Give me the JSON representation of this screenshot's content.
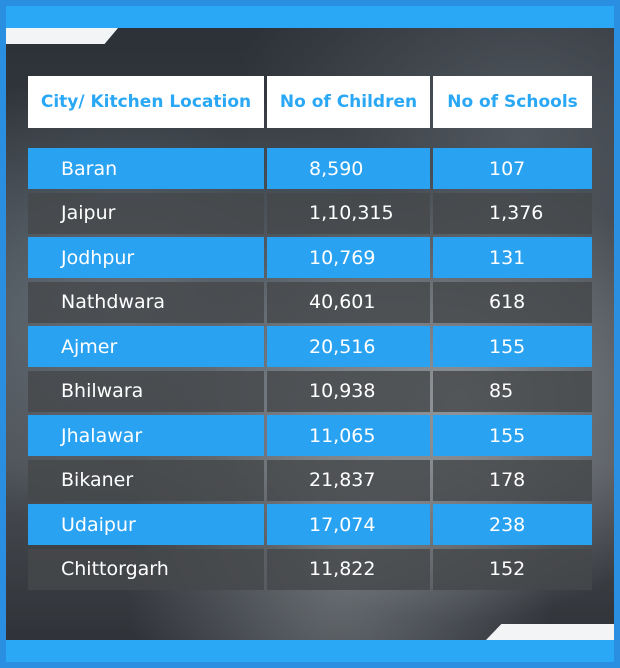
{
  "table": {
    "headers": [
      "City/ Kitchen Location",
      "No of Children",
      "No of Schools"
    ],
    "rows": [
      {
        "city": "Baran",
        "children": "8,590",
        "schools": "107"
      },
      {
        "city": "Jaipur",
        "children": "1,10,315",
        "schools": "1,376"
      },
      {
        "city": "Jodhpur",
        "children": "10,769",
        "schools": "131"
      },
      {
        "city": "Nathdwara",
        "children": "40,601",
        "schools": "618"
      },
      {
        "city": "Ajmer",
        "children": "20,516",
        "schools": "155"
      },
      {
        "city": "Bhilwara",
        "children": "10,938",
        "schools": "85"
      },
      {
        "city": "Jhalawar",
        "children": "11,065",
        "schools": "155"
      },
      {
        "city": "Bikaner",
        "children": "21,837",
        "schools": "178"
      },
      {
        "city": "Udaipur",
        "children": "17,074",
        "schools": "238"
      },
      {
        "city": "Chittorgarh",
        "children": "11,822",
        "schools": "152"
      }
    ]
  },
  "colors": {
    "accent_blue": "#2aa8f5",
    "row_blue": "#2aa2f2",
    "row_dark": "#46484b",
    "header_bg": "#ffffff"
  }
}
